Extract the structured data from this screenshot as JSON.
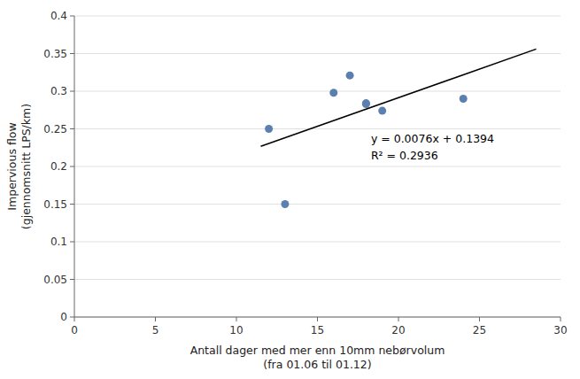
{
  "chart_data": {
    "type": "scatter",
    "x_label": "Antall dager med mer enn 10mm nebørvolum\n(fra 01.06 til 01.12)",
    "y_label": "Impervious flow\n(gjennomsnitt LPS/km)",
    "annotations": [
      "y = 0.0076x + 0.1394",
      "R² = 0.2936"
    ],
    "series": [
      {
        "type": "scatter",
        "color": "#5b80b0",
        "x": [
          12,
          13,
          16,
          17,
          18,
          18,
          19,
          24
        ],
        "values": [
          0.25,
          0.15,
          0.298,
          0.321,
          0.283,
          0.284,
          0.274,
          0.29
        ]
      },
      {
        "type": "line",
        "color": "#000000",
        "x": [
          11.5,
          28.5
        ],
        "values": [
          0.2268,
          0.356
        ]
      }
    ],
    "xlim": [
      0,
      30
    ],
    "ylim": [
      0,
      0.4
    ],
    "xticks": [
      0,
      5,
      10,
      15,
      20,
      25,
      30
    ],
    "yticks": [
      0,
      0.05,
      0.1,
      0.15,
      0.2,
      0.25,
      0.3,
      0.35,
      0.4
    ],
    "grid": true
  }
}
